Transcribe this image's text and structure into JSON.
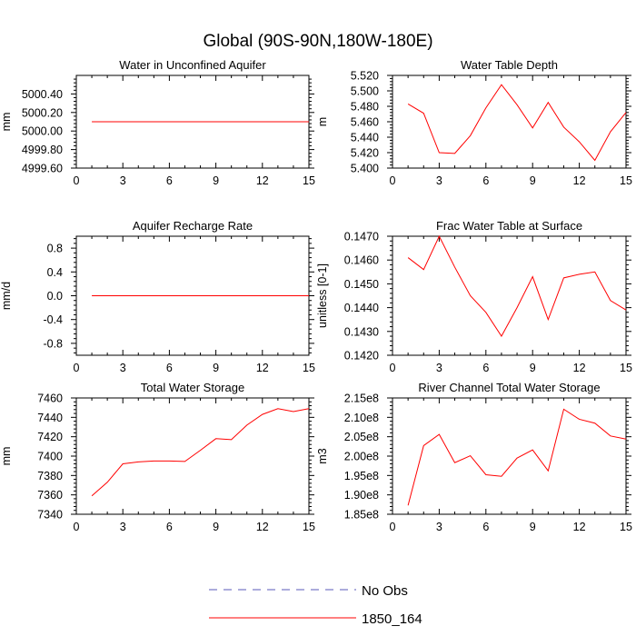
{
  "title": "Global (90S-90N,180W-180E)",
  "legend": {
    "placement": "bottom-center",
    "entries": [
      {
        "label": "No Obs",
        "color": "#5a5ab8",
        "dashed": true
      },
      {
        "label": "1850_164",
        "color": "#ff0000",
        "dashed": false
      }
    ]
  },
  "chart_data": [
    {
      "type": "line",
      "title": "Water in Unconfined Aquifer",
      "ylabel": "mm",
      "xlabel": "",
      "xlim": [
        0,
        15
      ],
      "ylim": [
        4999.6,
        5000.6
      ],
      "xticks": [
        0,
        3,
        6,
        9,
        12,
        15
      ],
      "yticks": [
        4999.6,
        4999.8,
        5000.0,
        5000.2,
        5000.4
      ],
      "ytick_labels": [
        "4999.60",
        "4999.80",
        "5000.00",
        "5000.20",
        "5000.40"
      ],
      "grid": false,
      "series": [
        {
          "name": "1850_164",
          "color": "#ff0000",
          "x": [
            1,
            15
          ],
          "y": [
            5000.1,
            5000.1
          ]
        }
      ]
    },
    {
      "type": "line",
      "title": "Water Table Depth",
      "ylabel": "m",
      "xlabel": "",
      "xlim": [
        0,
        15
      ],
      "ylim": [
        5.4,
        5.52
      ],
      "xticks": [
        0,
        3,
        6,
        9,
        12,
        15
      ],
      "yticks": [
        5.4,
        5.42,
        5.44,
        5.46,
        5.48,
        5.5,
        5.52
      ],
      "ytick_labels": [
        "5.400",
        "5.420",
        "5.440",
        "5.460",
        "5.480",
        "5.500",
        "5.520"
      ],
      "grid": false,
      "series": [
        {
          "name": "1850_164",
          "color": "#ff0000",
          "x": [
            1,
            2,
            3,
            4,
            5,
            6,
            7,
            8,
            9,
            10,
            11,
            12,
            13,
            14,
            15
          ],
          "y": [
            5.483,
            5.471,
            5.42,
            5.419,
            5.442,
            5.478,
            5.508,
            5.482,
            5.452,
            5.485,
            5.453,
            5.434,
            5.41,
            5.447,
            5.472
          ]
        }
      ]
    },
    {
      "type": "line",
      "title": "Aquifer Recharge Rate",
      "ylabel": "mm/d",
      "xlabel": "",
      "xlim": [
        0,
        15
      ],
      "ylim": [
        -1,
        1
      ],
      "xticks": [
        0,
        3,
        6,
        9,
        12,
        15
      ],
      "yticks": [
        -0.8,
        -0.4,
        0,
        0.4,
        0.8
      ],
      "ytick_labels": [
        "-0.8",
        "-0.4",
        "0.0",
        "0.4",
        "0.8"
      ],
      "grid": false,
      "series": [
        {
          "name": "1850_164",
          "color": "#ff0000",
          "x": [
            1,
            15
          ],
          "y": [
            0,
            0
          ]
        }
      ]
    },
    {
      "type": "line",
      "title": "Frac Water Table at Surface",
      "ylabel": "unitless [0-1]",
      "xlabel": "",
      "xlim": [
        0,
        15
      ],
      "ylim": [
        0.142,
        0.147
      ],
      "xticks": [
        0,
        3,
        6,
        9,
        12,
        15
      ],
      "yticks": [
        0.142,
        0.143,
        0.144,
        0.145,
        0.146,
        0.147
      ],
      "ytick_labels": [
        "0.1420",
        "0.1430",
        "0.1440",
        "0.1450",
        "0.1460",
        "0.1470"
      ],
      "grid": false,
      "series": [
        {
          "name": "1850_164",
          "color": "#ff0000",
          "x": [
            1,
            2,
            3,
            4,
            5,
            6,
            7,
            8,
            9,
            10,
            11,
            12,
            13,
            14,
            15
          ],
          "y": [
            0.1461,
            0.1456,
            0.147,
            0.1457,
            0.1445,
            0.1438,
            0.1428,
            0.144,
            0.1453,
            0.1435,
            0.14525,
            0.1454,
            0.1455,
            0.1443,
            0.1439
          ]
        }
      ]
    },
    {
      "type": "line",
      "title": "Total Water Storage",
      "ylabel": "mm",
      "xlabel": "",
      "xlim": [
        0,
        15
      ],
      "ylim": [
        7340,
        7460
      ],
      "xticks": [
        0,
        3,
        6,
        9,
        12,
        15
      ],
      "yticks": [
        7340,
        7360,
        7380,
        7400,
        7420,
        7440,
        7460
      ],
      "ytick_labels": [
        "7340",
        "7360",
        "7380",
        "7400",
        "7420",
        "7440",
        "7460"
      ],
      "grid": false,
      "series": [
        {
          "name": "1850_164",
          "color": "#ff0000",
          "x": [
            1,
            2,
            3,
            4,
            5,
            6,
            7,
            8,
            9,
            10,
            11,
            12,
            13,
            14,
            15
          ],
          "y": [
            7359,
            7373,
            7392,
            7394,
            7395,
            7395,
            7394.5,
            7406,
            7418,
            7417,
            7432,
            7443,
            7449,
            7446,
            7449
          ]
        }
      ]
    },
    {
      "type": "line",
      "title": "River Channel Total Water Storage",
      "ylabel": "m3",
      "xlabel": "",
      "xlim": [
        0,
        15
      ],
      "ylim": [
        185000000,
        215000000
      ],
      "xticks": [
        0,
        3,
        6,
        9,
        12,
        15
      ],
      "yticks": [
        185000000,
        190000000,
        195000000,
        200000000,
        205000000,
        210000000,
        215000000
      ],
      "ytick_labels": [
        "1.85e8",
        "1.90e8",
        "1.95e8",
        "2.00e8",
        "2.05e8",
        "2.10e8",
        "2.15e8"
      ],
      "grid": false,
      "series": [
        {
          "name": "1850_164",
          "color": "#ff0000",
          "x": [
            1,
            2,
            3,
            4,
            5,
            6,
            7,
            8,
            9,
            10,
            11,
            12,
            13,
            14,
            15
          ],
          "y": [
            187300000,
            202700000,
            205600000,
            198300000,
            200100000,
            195200000,
            194800000,
            199500000,
            201600000,
            196200000,
            212100000,
            209500000,
            208500000,
            205200000,
            204400000
          ]
        }
      ]
    }
  ]
}
